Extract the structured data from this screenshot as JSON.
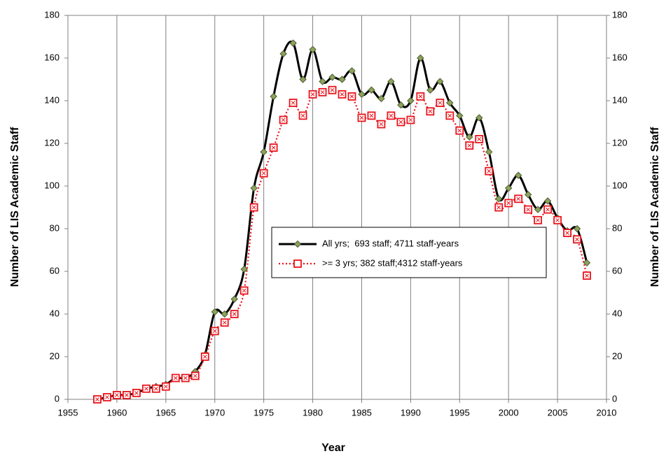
{
  "chart_data": {
    "type": "line",
    "x_label": "Year",
    "y_label": "Number of LIS Academic Staff",
    "y2_label": "Number of LIS Academic Staff",
    "x": [
      1958,
      1959,
      1960,
      1961,
      1962,
      1963,
      1964,
      1965,
      1966,
      1967,
      1968,
      1969,
      1970,
      1971,
      1972,
      1973,
      1974,
      1975,
      1976,
      1977,
      1978,
      1979,
      1980,
      1981,
      1982,
      1983,
      1984,
      1985,
      1986,
      1987,
      1988,
      1989,
      1990,
      1991,
      1992,
      1993,
      1994,
      1995,
      1996,
      1997,
      1998,
      1999,
      2000,
      2001,
      2002,
      2003,
      2004,
      2005,
      2006,
      2007,
      2008
    ],
    "series": [
      {
        "name": "All yrs;  693 staff; 4711 staff-years",
        "color": "#000000",
        "marker": "diamond",
        "marker_color": "#8da35c",
        "line_style": "solid",
        "values": [
          0,
          1,
          2,
          2,
          3,
          5,
          6,
          7,
          10,
          10,
          13,
          21,
          41,
          40,
          47,
          61,
          99,
          116,
          142,
          162,
          167,
          150,
          164,
          149,
          151,
          150,
          154,
          143,
          145,
          141,
          149,
          138,
          140,
          160,
          145,
          149,
          139,
          133,
          123,
          132,
          116,
          94,
          99,
          105,
          96,
          89,
          93,
          85,
          79,
          80,
          64
        ]
      },
      {
        "name": ">= 3 yrs; 382 staff;4312 staff-years",
        "color": "#e8141c",
        "marker": "square",
        "marker_color": "#e8141c",
        "line_style": "dotted",
        "values": [
          0,
          1,
          2,
          2,
          3,
          5,
          5,
          6,
          10,
          10,
          11,
          20,
          32,
          36,
          40,
          51,
          90,
          106,
          118,
          131,
          139,
          133,
          143,
          144,
          145,
          143,
          142,
          132,
          133,
          129,
          133,
          130,
          131,
          142,
          135,
          139,
          133,
          126,
          119,
          122,
          107,
          90,
          92,
          94,
          89,
          84,
          89,
          84,
          78,
          75,
          58
        ]
      }
    ],
    "xlim": [
      1955,
      2010
    ],
    "xticks": [
      1955,
      1960,
      1965,
      1970,
      1975,
      1980,
      1985,
      1990,
      1995,
      2000,
      2005,
      2010
    ],
    "ylim": [
      0,
      180
    ],
    "yticks": [
      0,
      20,
      40,
      60,
      80,
      100,
      120,
      140,
      160,
      180
    ],
    "y2lim": [
      0,
      180
    ],
    "y2ticks": [
      0,
      20,
      40,
      60,
      80,
      100,
      120,
      140,
      160,
      180
    ],
    "grid": "x",
    "legend": "center"
  }
}
